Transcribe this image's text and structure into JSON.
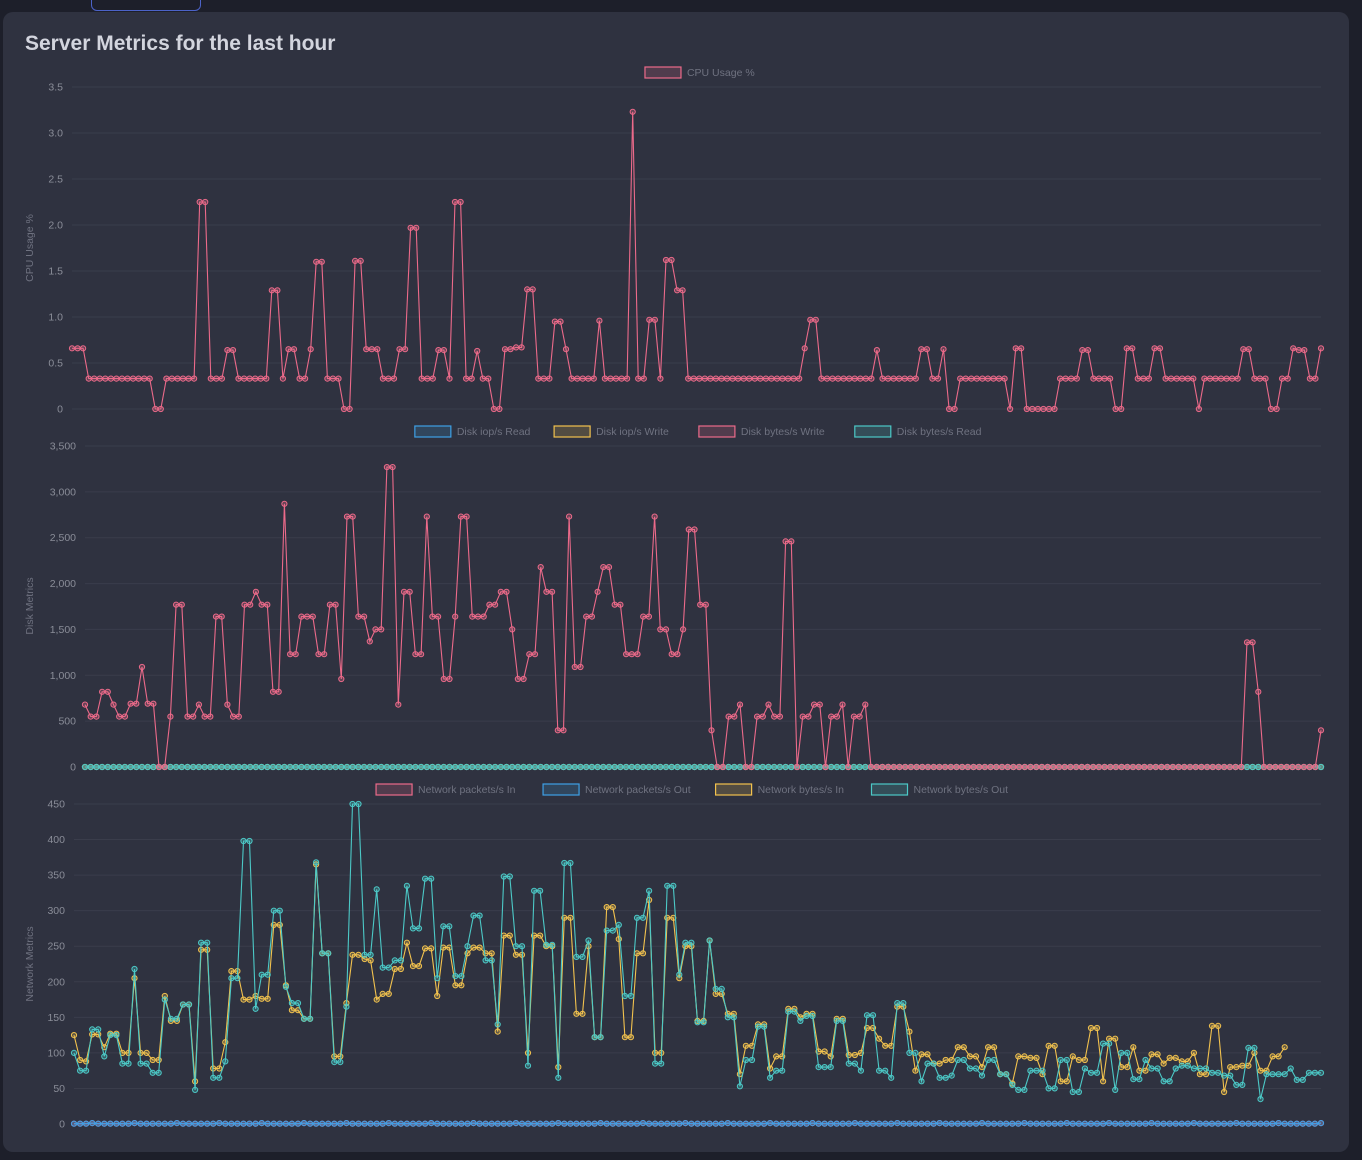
{
  "panel": {
    "title": "Server Metrics for the last hour"
  },
  "colors": {
    "pink": "#ec6a8a",
    "blue": "#3ea0e6",
    "yellow": "#f2c24e",
    "teal": "#4cc9c7",
    "grid": "#3a3d4b",
    "tick": "#8a8d98"
  },
  "chart_data": [
    {
      "type": "line",
      "ylabel": "CPU Usage %",
      "ylim": [
        0,
        3.5
      ],
      "yticks": [
        "0",
        "0.5",
        "1.0",
        "1.5",
        "2.0",
        "2.5",
        "3.0",
        "3.5"
      ],
      "grid": true,
      "legend_position": "top-center",
      "series": [
        {
          "name": "CPU Usage %",
          "color": "#ec6a8a",
          "values": [
            0.66,
            0.66,
            0.66,
            0.33,
            0.33,
            0.33,
            0.33,
            0.33,
            0.33,
            0.33,
            0.33,
            0.33,
            0.33,
            0.33,
            0.33,
            0,
            0,
            0.33,
            0.33,
            0.33,
            0.33,
            0.33,
            0.33,
            2.25,
            2.25,
            0.33,
            0.33,
            0.33,
            0.64,
            0.64,
            0.33,
            0.33,
            0.33,
            0.33,
            0.33,
            0.33,
            1.29,
            1.29,
            0.33,
            0.65,
            0.65,
            0.33,
            0.33,
            0.65,
            1.6,
            1.6,
            0.33,
            0.33,
            0.33,
            0,
            0,
            1.61,
            1.61,
            0.65,
            0.65,
            0.65,
            0.33,
            0.33,
            0.33,
            0.65,
            0.65,
            1.97,
            1.97,
            0.33,
            0.33,
            0.33,
            0.64,
            0.64,
            0.33,
            2.25,
            2.25,
            0.33,
            0.33,
            0.63,
            0.33,
            0.33,
            0,
            0,
            0.65,
            0.65,
            0.67,
            0.67,
            1.3,
            1.3,
            0.33,
            0.33,
            0.33,
            0.95,
            0.95,
            0.65,
            0.33,
            0.33,
            0.33,
            0.33,
            0.33,
            0.96,
            0.33,
            0.33,
            0.33,
            0.33,
            0.33,
            3.23,
            0.33,
            0.33,
            0.97,
            0.97,
            0.33,
            1.62,
            1.62,
            1.29,
            1.29,
            0.33,
            0.33,
            0.33,
            0.33,
            0.33,
            0.33,
            0.33,
            0.33,
            0.33,
            0.33,
            0.33,
            0.33,
            0.33,
            0.33,
            0.33,
            0.33,
            0.33,
            0.33,
            0.33,
            0.33,
            0.33,
            0.66,
            0.97,
            0.97,
            0.33,
            0.33,
            0.33,
            0.33,
            0.33,
            0.33,
            0.33,
            0.33,
            0.33,
            0.33,
            0.64,
            0.33,
            0.33,
            0.33,
            0.33,
            0.33,
            0.33,
            0.33,
            0.65,
            0.65,
            0.33,
            0.33,
            0.65,
            0,
            0,
            0.33,
            0.33,
            0.33,
            0.33,
            0.33,
            0.33,
            0.33,
            0.33,
            0.33,
            0,
            0.66,
            0.66,
            0,
            0,
            0,
            0,
            0,
            0,
            0.33,
            0.33,
            0.33,
            0.33,
            0.64,
            0.64,
            0.33,
            0.33,
            0.33,
            0.33,
            0,
            0,
            0.66,
            0.66,
            0.33,
            0.33,
            0.33,
            0.66,
            0.66,
            0.33,
            0.33,
            0.33,
            0.33,
            0.33,
            0.33,
            0,
            0.33,
            0.33,
            0.33,
            0.33,
            0.33,
            0.33,
            0.33,
            0.65,
            0.65,
            0.33,
            0.33,
            0.33,
            0,
            0,
            0.33,
            0.33,
            0.66,
            0.64,
            0.64,
            0.33,
            0.33,
            0.66
          ]
        }
      ]
    },
    {
      "type": "line",
      "ylabel": "Disk Metrics",
      "ylim": [
        0,
        3500
      ],
      "yticks": [
        "0",
        "500",
        "1,000",
        "1,500",
        "2,000",
        "2,500",
        "3,000",
        "3,500"
      ],
      "grid": true,
      "legend_position": "top-center",
      "series": [
        {
          "name": "Disk iop/s Read",
          "color": "#3ea0e6",
          "values": "zeros"
        },
        {
          "name": "Disk iop/s Write",
          "color": "#f2c24e",
          "values": "zeros"
        },
        {
          "name": "Disk bytes/s Write",
          "color": "#ec6a8a",
          "values": [
            680,
            550,
            550,
            820,
            820,
            680,
            550,
            550,
            690,
            690,
            1090,
            690,
            690,
            0,
            0,
            550,
            1770,
            1770,
            550,
            550,
            680,
            550,
            550,
            1640,
            1640,
            680,
            550,
            550,
            1770,
            1770,
            1910,
            1770,
            1770,
            820,
            820,
            2870,
            1230,
            1230,
            1640,
            1640,
            1640,
            1230,
            1230,
            1770,
            1770,
            960,
            2730,
            2730,
            1640,
            1640,
            1370,
            1500,
            1500,
            3270,
            3270,
            680,
            1910,
            1910,
            1230,
            1230,
            2730,
            1640,
            1640,
            960,
            960,
            1640,
            2730,
            2730,
            1640,
            1640,
            1640,
            1770,
            1770,
            1910,
            1910,
            1500,
            960,
            960,
            1230,
            1230,
            2180,
            1910,
            1910,
            400,
            400,
            2730,
            1090,
            1090,
            1640,
            1640,
            1910,
            2180,
            2180,
            1770,
            1770,
            1230,
            1230,
            1230,
            1640,
            1640,
            2730,
            1500,
            1500,
            1230,
            1230,
            1500,
            2590,
            2590,
            1770,
            1770,
            400,
            0,
            0,
            550,
            550,
            680,
            0,
            0,
            550,
            550,
            680,
            550,
            550,
            2460,
            2460,
            0,
            550,
            550,
            680,
            680,
            0,
            550,
            550,
            680,
            0,
            550,
            550,
            680,
            0,
            0,
            0,
            0,
            0,
            0,
            0,
            0,
            0,
            0,
            0,
            0,
            0,
            0,
            0,
            0,
            0,
            0,
            0,
            0,
            0,
            0,
            0,
            0,
            0,
            0,
            0,
            0,
            0,
            0,
            0,
            0,
            0,
            0,
            0,
            0,
            0,
            0,
            0,
            0,
            0,
            0,
            0,
            0,
            0,
            0,
            0,
            0,
            0,
            0,
            0,
            0,
            0,
            0,
            0,
            0,
            0,
            0,
            0,
            0,
            0,
            0,
            0,
            0,
            0,
            0,
            1360,
            1360,
            820,
            0,
            0,
            0,
            0,
            0,
            0,
            0,
            0,
            0,
            0,
            400
          ]
        },
        {
          "name": "Disk bytes/s Read",
          "color": "#4cc9c7",
          "values": "zeros"
        }
      ]
    },
    {
      "type": "line",
      "ylabel": "Network Metrics",
      "ylim": [
        0,
        450
      ],
      "yticks": [
        "0",
        "50",
        "100",
        "150",
        "200",
        "250",
        "300",
        "350",
        "400",
        "450"
      ],
      "grid": true,
      "legend_position": "top-center",
      "series": [
        {
          "name": "Network packets/s In",
          "color": "#ec6a8a",
          "values": "near-zero"
        },
        {
          "name": "Network packets/s Out",
          "color": "#3ea0e6",
          "values": "near-zero"
        },
        {
          "name": "Network bytes/s In",
          "color": "#f2c24e",
          "values": [
            125,
            90,
            88,
            126,
            126,
            108,
            127,
            127,
            100,
            100,
            205,
            100,
            100,
            90,
            90,
            180,
            145,
            145,
            168,
            168,
            60,
            245,
            245,
            78,
            78,
            115,
            215,
            215,
            175,
            175,
            180,
            176,
            176,
            280,
            280,
            195,
            160,
            160,
            148,
            148,
            365,
            240,
            240,
            95,
            95,
            170,
            238,
            238,
            232,
            230,
            175,
            183,
            183,
            218,
            218,
            255,
            222,
            222,
            247,
            247,
            180,
            248,
            248,
            195,
            195,
            240,
            248,
            248,
            240,
            240,
            130,
            265,
            265,
            238,
            238,
            100,
            265,
            265,
            250,
            250,
            80,
            290,
            290,
            155,
            155,
            250,
            122,
            122,
            305,
            305,
            260,
            122,
            122,
            240,
            240,
            315,
            100,
            100,
            290,
            290,
            205,
            250,
            250,
            145,
            145,
            258,
            183,
            183,
            155,
            155,
            70,
            110,
            110,
            140,
            140,
            78,
            95,
            95,
            162,
            162,
            150,
            155,
            155,
            102,
            102,
            95,
            148,
            148,
            97,
            97,
            100,
            135,
            135,
            120,
            110,
            110,
            165,
            165,
            130,
            75,
            98,
            98,
            85,
            85,
            90,
            90,
            108,
            108,
            95,
            95,
            80,
            108,
            108,
            70,
            70,
            57,
            95,
            95,
            93,
            93,
            70,
            110,
            110,
            60,
            60,
            95,
            90,
            90,
            135,
            135,
            60,
            120,
            120,
            80,
            80,
            108,
            75,
            75,
            98,
            98,
            85,
            93,
            93,
            88,
            88,
            100,
            70,
            70,
            138,
            138,
            45,
            80,
            80,
            82,
            82,
            100,
            75,
            75,
            95,
            95,
            108
          ]
        },
        {
          "name": "Network bytes/s Out",
          "color": "#4cc9c7",
          "values": [
            100,
            75,
            75,
            133,
            133,
            95,
            125,
            125,
            85,
            85,
            218,
            85,
            85,
            72,
            72,
            175,
            148,
            148,
            168,
            168,
            48,
            255,
            255,
            65,
            65,
            88,
            205,
            205,
            398,
            398,
            162,
            210,
            210,
            300,
            300,
            193,
            170,
            170,
            148,
            148,
            368,
            240,
            240,
            87,
            87,
            165,
            450,
            450,
            238,
            238,
            330,
            220,
            220,
            230,
            230,
            335,
            275,
            275,
            345,
            345,
            205,
            278,
            278,
            208,
            208,
            250,
            293,
            293,
            230,
            230,
            140,
            348,
            348,
            250,
            250,
            82,
            328,
            328,
            252,
            252,
            65,
            367,
            367,
            235,
            235,
            258,
            122,
            122,
            272,
            272,
            280,
            180,
            180,
            290,
            290,
            328,
            85,
            85,
            335,
            335,
            210,
            255,
            255,
            143,
            143,
            258,
            190,
            190,
            150,
            150,
            53,
            90,
            90,
            137,
            137,
            65,
            75,
            75,
            158,
            158,
            145,
            152,
            152,
            80,
            80,
            80,
            145,
            145,
            85,
            85,
            75,
            153,
            153,
            75,
            75,
            65,
            170,
            170,
            100,
            100,
            60,
            85,
            85,
            65,
            65,
            68,
            90,
            90,
            78,
            78,
            68,
            90,
            90,
            70,
            70,
            55,
            48,
            48,
            75,
            75,
            75,
            50,
            50,
            90,
            90,
            45,
            45,
            78,
            72,
            72,
            113,
            113,
            48,
            100,
            100,
            63,
            63,
            90,
            78,
            78,
            60,
            60,
            78,
            82,
            82,
            78,
            78,
            78,
            72,
            72,
            68,
            68,
            55,
            55,
            107,
            107,
            35,
            70,
            70,
            70,
            70,
            78,
            62,
            62,
            72,
            72,
            72
          ]
        }
      ]
    }
  ]
}
